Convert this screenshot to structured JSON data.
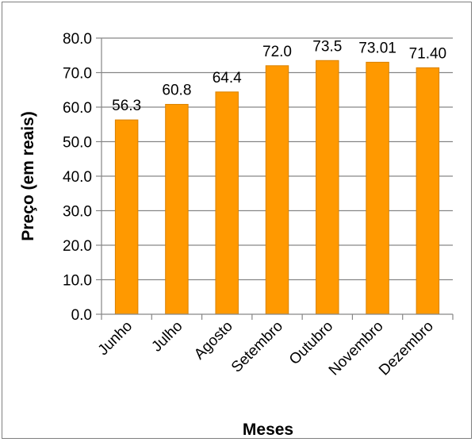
{
  "chart_data": {
    "type": "bar",
    "title": "",
    "xlabel": "Meses",
    "ylabel": "Preço (em reais)",
    "categories": [
      "Junho",
      "Julho",
      "Agosto",
      "Setembro",
      "Outubro",
      "Novembro",
      "Dezembro"
    ],
    "values": [
      56.3,
      60.8,
      64.4,
      72.0,
      73.5,
      73.01,
      71.4
    ],
    "value_labels": [
      "56.3",
      "60.8",
      "64.4",
      "72.0",
      "73.5",
      "73.01",
      "71.40"
    ],
    "ylim": [
      0,
      80
    ],
    "yticks": [
      "0.0",
      "10.0",
      "20.0",
      "30.0",
      "40.0",
      "50.0",
      "60.0",
      "70.0",
      "80.0"
    ],
    "grid": true,
    "legend": "none",
    "bar_color": "#ff9900",
    "bar_edge_color": "#d98200",
    "gridline_color": "#868686"
  }
}
